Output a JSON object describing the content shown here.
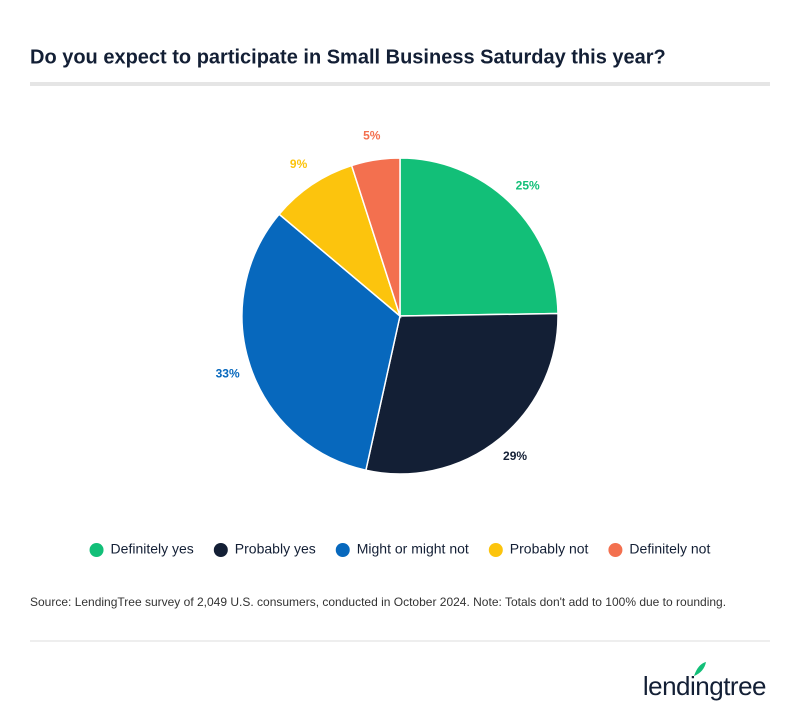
{
  "chart_data": {
    "type": "pie",
    "title": "Do you expect to participate in Small Business Saturday this year?",
    "categories": [
      "Definitely yes",
      "Probably yes",
      "Might or might not",
      "Probably not",
      "Definitely not"
    ],
    "values": [
      25,
      29,
      33,
      9,
      5
    ],
    "value_labels": [
      "25%",
      "29%",
      "33%",
      "9%",
      "5%"
    ],
    "colors": [
      "#12bf78",
      "#131f35",
      "#0768bd",
      "#fcc40d",
      "#f3704f"
    ],
    "note": "Source: LendingTree survey of 2,049 U.S. consumers, conducted in October 2024. Note: Totals don't add to 100% due to rounding."
  },
  "brand": "lendingtree"
}
